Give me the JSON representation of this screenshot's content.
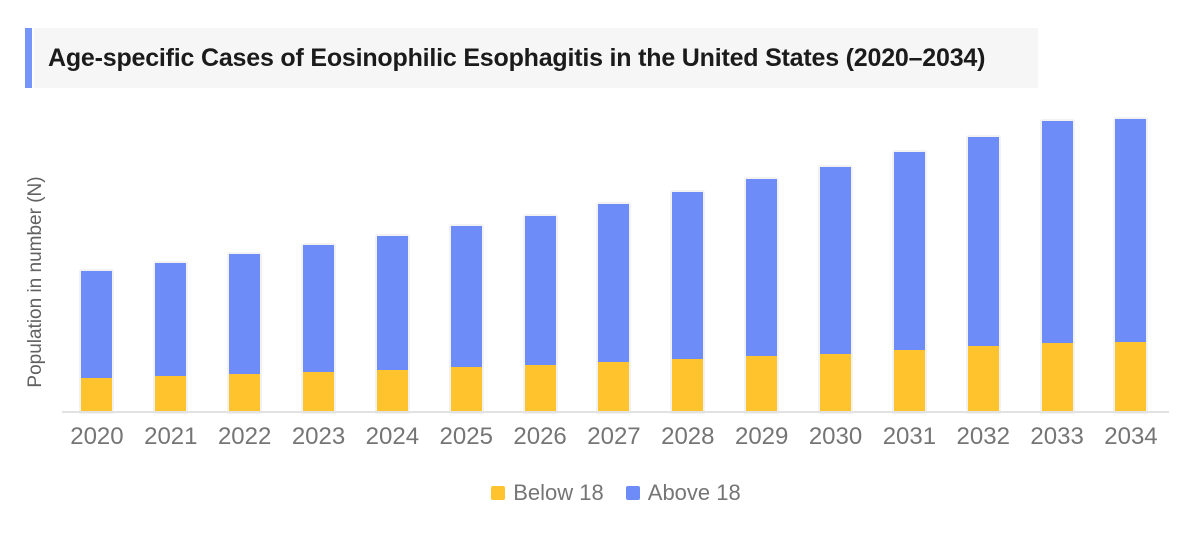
{
  "title": {
    "text": "Age-specific Cases of Eosinophilic Esophagitis in the United States (2020–2034)"
  },
  "y_axis": {
    "label": "Population in number (N)",
    "tick_labels": "none shown"
  },
  "legend": {
    "position": "bottom-center",
    "items": [
      {
        "label": "Below 18",
        "color": "#FEC32D"
      },
      {
        "label": "Above 18",
        "color": "#6D8CF7"
      }
    ]
  },
  "colors": {
    "bar_below": "#FEC32D",
    "bar_above": "#6D8CF7",
    "title_accent": "#7695F8",
    "title_bg": "#F6F6F6",
    "title_text": "#1B1B1B",
    "axis_line": "#E2E2E2",
    "tick_text": "#757575",
    "ylabel_text": "#616161"
  },
  "chart_data": {
    "type": "bar",
    "stacked": true,
    "title": "Age-specific Cases of Eosinophilic Esophagitis in the United States (2020–2034)",
    "xlabel": "",
    "ylabel": "Population in number (N)",
    "grid": false,
    "legend_position": "bottom-center",
    "y_axis_ticks": "none (axis unlabeled; values below are relative bar heights in screenshot pixels)",
    "ylim": [
      0,
      322
    ],
    "categories": [
      "2020",
      "2021",
      "2022",
      "2023",
      "2024",
      "2025",
      "2026",
      "2027",
      "2028",
      "2029",
      "2030",
      "2031",
      "2032",
      "2033",
      "2034"
    ],
    "series": [
      {
        "name": "Below 18",
        "color": "#FEC32D",
        "values": [
          34.5,
          36.5,
          38.5,
          40.5,
          42.5,
          45,
          47.5,
          50,
          53,
          56,
          58.5,
          62.5,
          66,
          69.5,
          70
        ]
      },
      {
        "name": "Above 18",
        "color": "#6D8CF7",
        "values": [
          107,
          113,
          120,
          127,
          134,
          141,
          149,
          158,
          167,
          177.5,
          186.5,
          198,
          209,
          222,
          223.5
        ]
      }
    ],
    "totals": [
      141.5,
      149.5,
      158.5,
      167.5,
      176.5,
      186,
      196.5,
      208,
      220,
      233.5,
      245,
      260.5,
      275,
      291.5,
      293.5
    ]
  }
}
